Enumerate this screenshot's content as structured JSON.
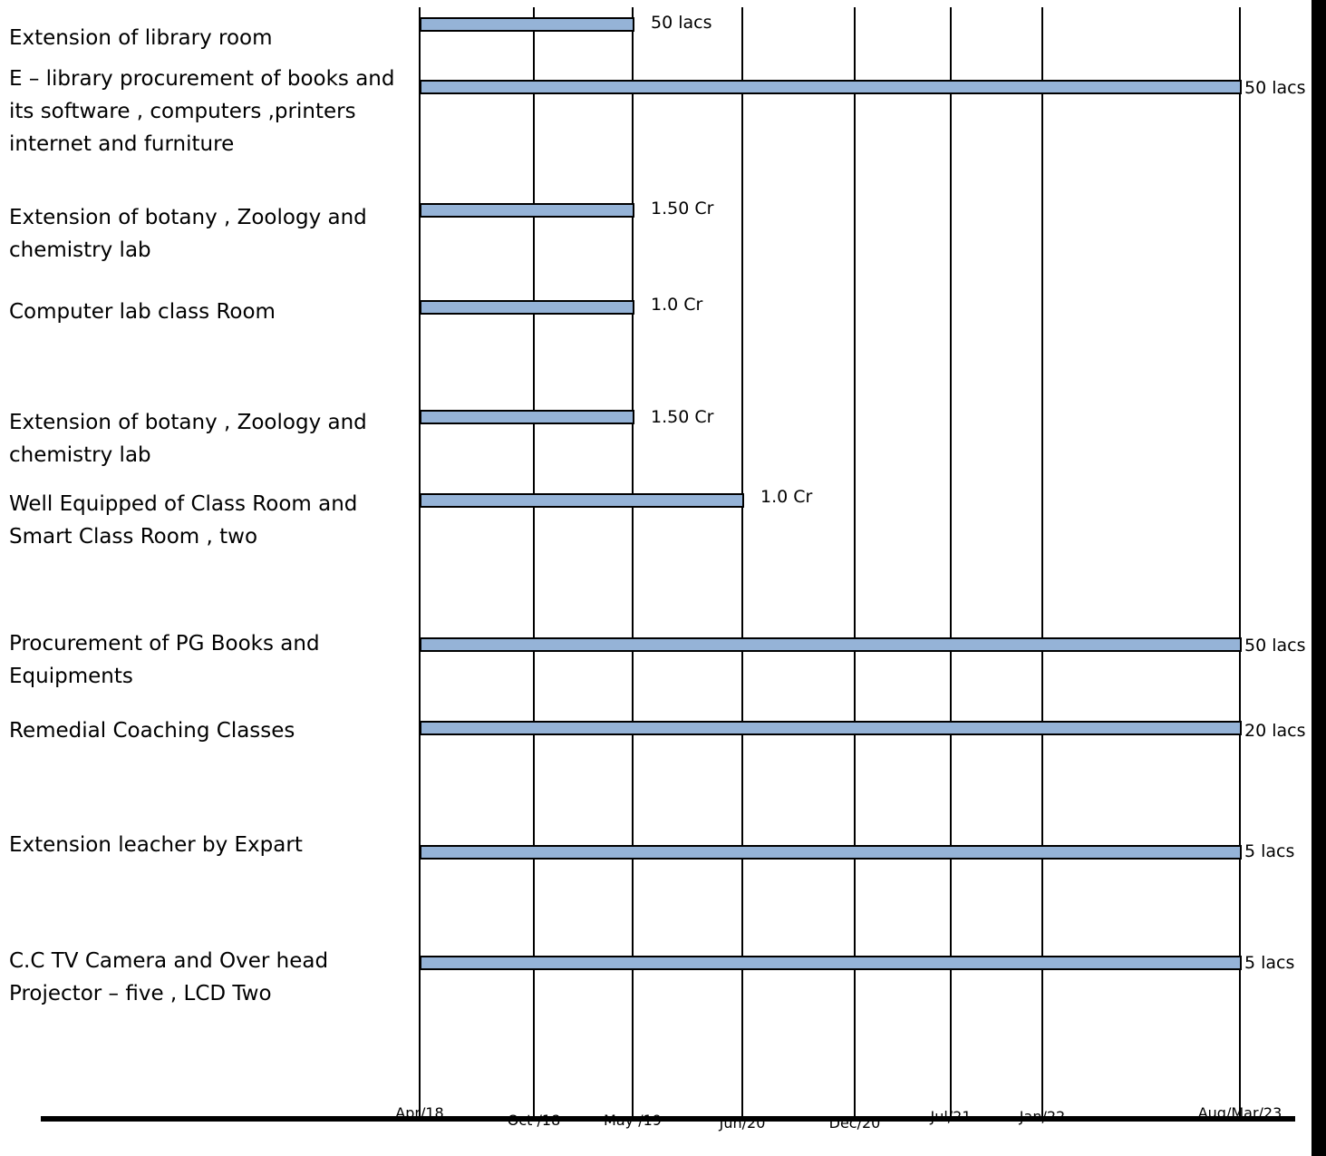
{
  "chart_data": {
    "type": "gantt",
    "x_axis": {
      "ticks": [
        "Apr/18",
        "Oct /18",
        "May /19",
        "Jun/20",
        "Dec/20",
        "Jul/21",
        "Jan/22",
        "Aug/Mar/23"
      ]
    },
    "tasks": [
      {
        "label": "Extension of library room",
        "start": "Apr/18",
        "end": "May /19",
        "value": "50 lacs"
      },
      {
        "label": "E – library procurement of books  and its software , computers ,printers internet and furniture",
        "start": "Apr/18",
        "end": "Aug/Mar/23",
        "value": "50 lacs"
      },
      {
        "label": "Extension of botany , Zoology  and chemistry lab",
        "start": "Apr/18",
        "end": "May /19",
        "value": "1.50 Cr"
      },
      {
        "label": "Computer lab class Room",
        "start": "Apr/18",
        "end": "May /19",
        "value": "1.0 Cr"
      },
      {
        "label": "Extension of botany , Zoology  and chemistry lab",
        "start": "Apr/18",
        "end": "May /19",
        "value": "1.50 Cr"
      },
      {
        "label": "Well Equipped  of Class Room and Smart  Class Room , two",
        "start": "Apr/18",
        "end": "Jun/20",
        "value": "1.0 Cr"
      },
      {
        "label": "Procurement of PG Books and Equipments",
        "start": "Apr/18",
        "end": "Aug/Mar/23",
        "value": "50 lacs"
      },
      {
        "label": "Remedial Coaching Classes",
        "start": "Apr/18",
        "end": "Aug/Mar/23",
        "value": "20 lacs"
      },
      {
        "label": "Extension leacher by Expart",
        "start": "Apr/18",
        "end": "Aug/Mar/23",
        "value": "5 lacs"
      },
      {
        "label": "C.C TV Camera and Over head Projector – five    , LCD Two",
        "start": "Apr/18",
        "end": "Aug/Mar/23",
        "value": "5 lacs"
      }
    ],
    "colors": {
      "bar": "#95b3d7",
      "bar_border": "#000000",
      "axis": "#000000"
    }
  }
}
